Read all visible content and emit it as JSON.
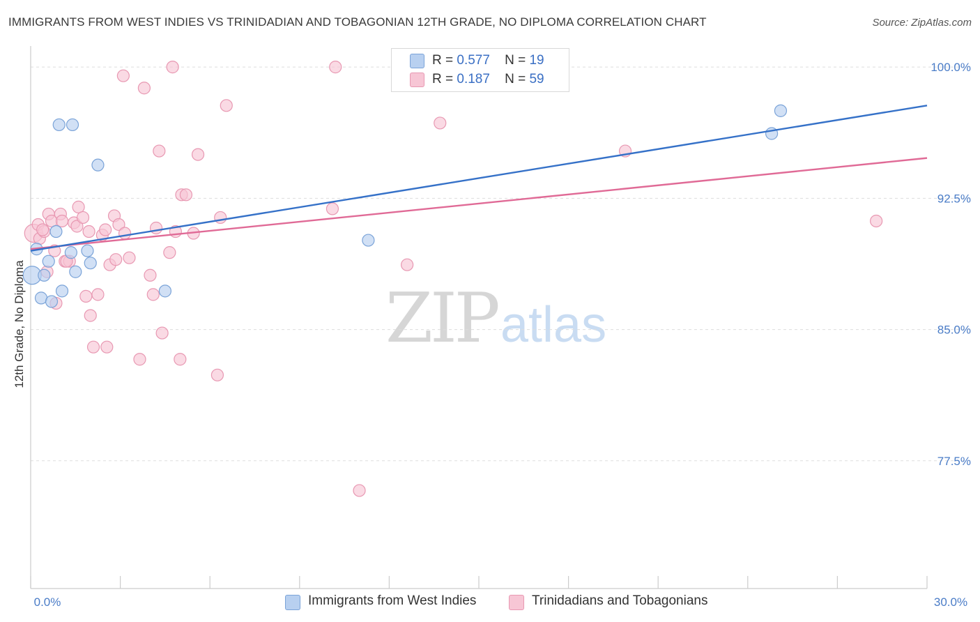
{
  "title": "IMMIGRANTS FROM WEST INDIES VS TRINIDADIAN AND TOBAGONIAN 12TH GRADE, NO DIPLOMA CORRELATION CHART",
  "source": "Source: ZipAtlas.com",
  "watermark": {
    "zip": "ZIP",
    "atlas": "atlas"
  },
  "legend": {
    "rows": [
      {
        "r_label": "R =",
        "r_value": "0.577",
        "n_label": "N =",
        "n_value": "19"
      },
      {
        "r_label": "R =",
        "r_value": "0.187",
        "n_label": "N =",
        "n_value": "59"
      }
    ]
  },
  "bottom_legend": [
    "Immigrants from West Indies",
    "Trinidadians and Tobagonians"
  ],
  "colors": {
    "blue_fill": "#b8d0f0",
    "blue_stroke": "#7aa3d8",
    "blue_line": "#3571c8",
    "pink_fill": "#f7c6d5",
    "pink_stroke": "#e898b2",
    "pink_line": "#e06a96",
    "tick_text": "#4a7cc7",
    "grid": "#dddddd"
  },
  "chart_data": {
    "type": "scatter",
    "title": "IMMIGRANTS FROM WEST INDIES VS TRINIDADIAN AND TOBAGONIAN 12TH GRADE, NO DIPLOMA CORRELATION CHART",
    "xlabel": "",
    "ylabel": "12th Grade, No Diploma",
    "xlim": [
      0,
      30
    ],
    "ylim": [
      70.2,
      101.2
    ],
    "x_tick_labels": [
      "0.0%",
      "30.0%"
    ],
    "y_ticks": [
      77.5,
      85.0,
      92.5,
      100.0
    ],
    "y_tick_labels": [
      "77.5%",
      "85.0%",
      "92.5%",
      "100.0%"
    ],
    "grid": true,
    "legend_placement": "top-center",
    "series": [
      {
        "name": "Immigrants from West Indies",
        "color": "#b8d0f0",
        "trend": {
          "x": [
            0,
            30
          ],
          "y": [
            89.5,
            97.8
          ],
          "color": "#3571c8"
        },
        "points": [
          {
            "x": 0.05,
            "y": 88.1,
            "big": true
          },
          {
            "x": 0.2,
            "y": 89.6
          },
          {
            "x": 0.35,
            "y": 86.8
          },
          {
            "x": 0.45,
            "y": 88.1
          },
          {
            "x": 0.6,
            "y": 88.9
          },
          {
            "x": 0.7,
            "y": 86.6
          },
          {
            "x": 0.85,
            "y": 90.6
          },
          {
            "x": 0.95,
            "y": 96.7
          },
          {
            "x": 1.05,
            "y": 87.2
          },
          {
            "x": 1.4,
            "y": 96.7
          },
          {
            "x": 1.35,
            "y": 89.4
          },
          {
            "x": 1.5,
            "y": 88.3
          },
          {
            "x": 1.9,
            "y": 89.5
          },
          {
            "x": 2.0,
            "y": 88.8
          },
          {
            "x": 2.25,
            "y": 94.4
          },
          {
            "x": 4.5,
            "y": 87.2
          },
          {
            "x": 11.3,
            "y": 90.1
          },
          {
            "x": 24.8,
            "y": 96.2
          },
          {
            "x": 25.1,
            "y": 97.5
          }
        ]
      },
      {
        "name": "Trinidadians and Tobagonians",
        "color": "#f7c6d5",
        "trend": {
          "x": [
            0,
            30
          ],
          "y": [
            89.6,
            94.8
          ],
          "color": "#e06a96"
        },
        "points": [
          {
            "x": 0.1,
            "y": 90.5,
            "big": true
          },
          {
            "x": 0.25,
            "y": 91.0
          },
          {
            "x": 0.3,
            "y": 90.2
          },
          {
            "x": 0.45,
            "y": 90.6
          },
          {
            "x": 0.55,
            "y": 88.3
          },
          {
            "x": 0.6,
            "y": 91.6
          },
          {
            "x": 0.7,
            "y": 91.2
          },
          {
            "x": 0.85,
            "y": 86.5
          },
          {
            "x": 0.8,
            "y": 89.5
          },
          {
            "x": 1.0,
            "y": 91.6
          },
          {
            "x": 1.05,
            "y": 91.2
          },
          {
            "x": 1.15,
            "y": 88.9
          },
          {
            "x": 1.3,
            "y": 88.9
          },
          {
            "x": 1.45,
            "y": 91.1
          },
          {
            "x": 1.55,
            "y": 90.9
          },
          {
            "x": 1.6,
            "y": 92.0
          },
          {
            "x": 1.75,
            "y": 91.4
          },
          {
            "x": 1.85,
            "y": 86.9
          },
          {
            "x": 1.95,
            "y": 90.6
          },
          {
            "x": 2.0,
            "y": 85.8
          },
          {
            "x": 2.1,
            "y": 84.0
          },
          {
            "x": 2.25,
            "y": 87.0
          },
          {
            "x": 2.4,
            "y": 90.4
          },
          {
            "x": 2.5,
            "y": 90.7
          },
          {
            "x": 2.55,
            "y": 84.0
          },
          {
            "x": 2.65,
            "y": 88.7
          },
          {
            "x": 2.8,
            "y": 91.5
          },
          {
            "x": 2.85,
            "y": 89.0
          },
          {
            "x": 2.95,
            "y": 91.0
          },
          {
            "x": 3.1,
            "y": 99.5
          },
          {
            "x": 3.15,
            "y": 90.5
          },
          {
            "x": 3.3,
            "y": 89.1
          },
          {
            "x": 3.65,
            "y": 83.3
          },
          {
            "x": 3.8,
            "y": 98.8
          },
          {
            "x": 4.0,
            "y": 88.1
          },
          {
            "x": 4.1,
            "y": 87.0
          },
          {
            "x": 4.2,
            "y": 90.8
          },
          {
            "x": 4.3,
            "y": 95.2
          },
          {
            "x": 4.4,
            "y": 84.8
          },
          {
            "x": 4.65,
            "y": 89.4
          },
          {
            "x": 4.75,
            "y": 100.0
          },
          {
            "x": 4.85,
            "y": 90.6
          },
          {
            "x": 5.0,
            "y": 83.3
          },
          {
            "x": 5.05,
            "y": 92.7
          },
          {
            "x": 5.2,
            "y": 92.7
          },
          {
            "x": 5.45,
            "y": 90.5
          },
          {
            "x": 5.6,
            "y": 95.0
          },
          {
            "x": 6.25,
            "y": 82.4
          },
          {
            "x": 6.35,
            "y": 91.4
          },
          {
            "x": 6.55,
            "y": 97.8
          },
          {
            "x": 10.1,
            "y": 91.9
          },
          {
            "x": 10.2,
            "y": 100.0
          },
          {
            "x": 12.6,
            "y": 88.7
          },
          {
            "x": 13.7,
            "y": 96.8
          },
          {
            "x": 19.9,
            "y": 95.2
          },
          {
            "x": 28.3,
            "y": 91.2
          },
          {
            "x": 11.0,
            "y": 75.8
          },
          {
            "x": 1.2,
            "y": 88.9
          },
          {
            "x": 0.4,
            "y": 90.7
          }
        ]
      }
    ]
  }
}
